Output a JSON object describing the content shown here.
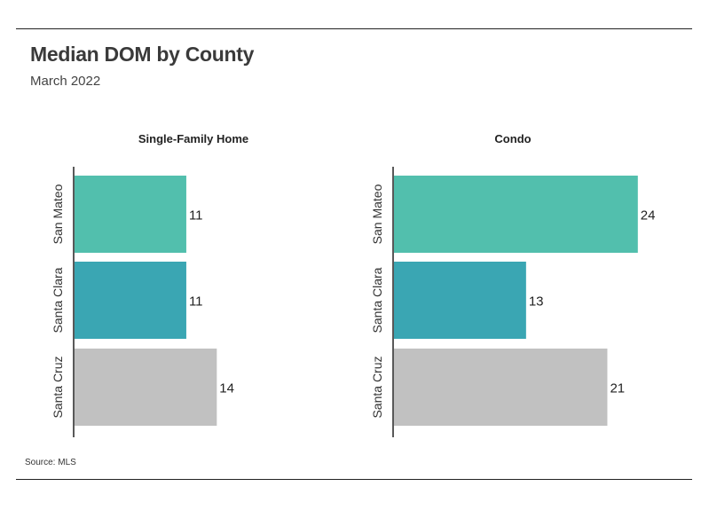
{
  "header": {
    "title": "Median DOM by County",
    "subtitle": "March 2022"
  },
  "footer": {
    "source": "Source:  MLS"
  },
  "colors": {
    "san_mateo": "#52bfad",
    "santa_clara": "#3aa6b3",
    "santa_cruz": "#c1c1c1",
    "axis": "#222222"
  },
  "chart_data": [
    {
      "type": "bar",
      "orientation": "horizontal",
      "title": "Single-Family Home",
      "categories": [
        "San Mateo",
        "Santa Clara",
        "Santa Cruz"
      ],
      "values": [
        11,
        11,
        14
      ],
      "xlim": [
        0,
        25
      ],
      "grid": false
    },
    {
      "type": "bar",
      "orientation": "horizontal",
      "title": "Condo",
      "categories": [
        "San Mateo",
        "Santa Clara",
        "Santa Cruz"
      ],
      "values": [
        24,
        13,
        21
      ],
      "xlim": [
        0,
        25
      ],
      "grid": false
    }
  ]
}
